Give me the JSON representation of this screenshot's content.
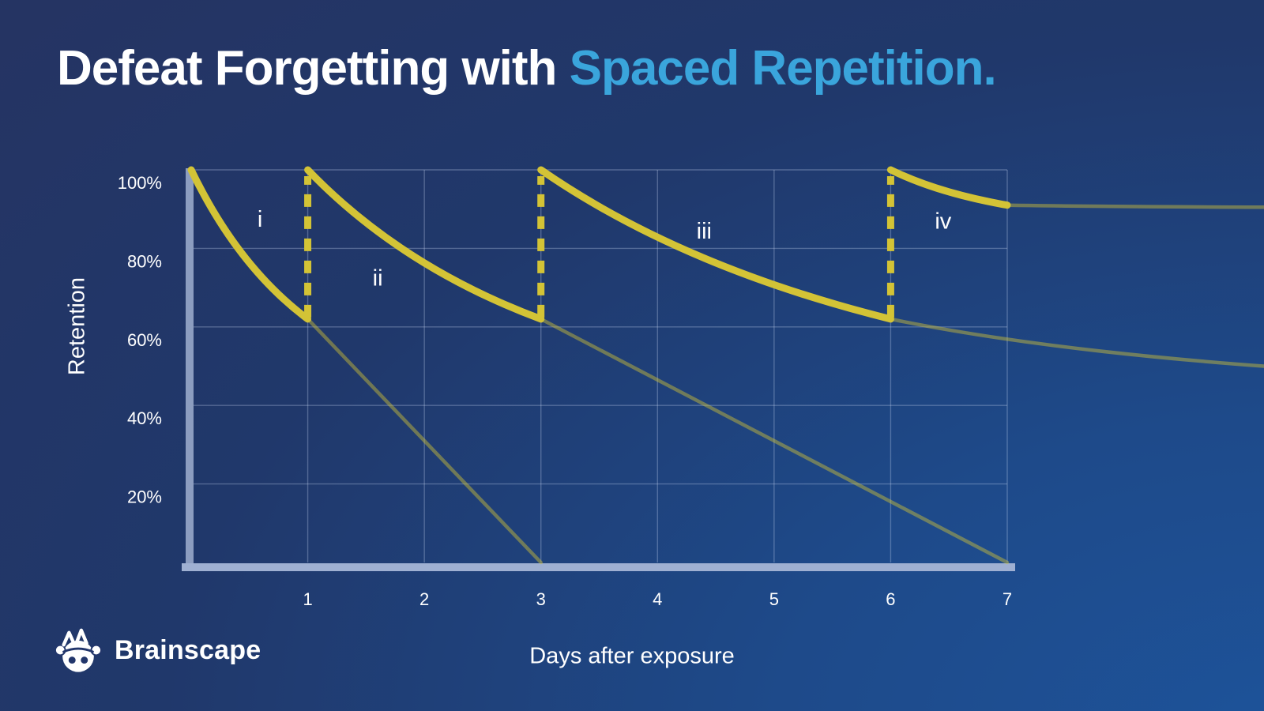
{
  "title": {
    "prefix": "Defeat Forgetting with ",
    "accent": "Spaced Repetition."
  },
  "axis": {
    "y_label": "Retention",
    "x_label": "Days after exposure"
  },
  "brand": {
    "name": "Brainscape"
  },
  "colors": {
    "accent_text": "#3aa5dc",
    "curve_yellow": "#d3c336",
    "faded_curve_opacity": 0.45,
    "grid": "rgba(205,220,245,0.30)",
    "y_axis_bar": "#8c9dc0",
    "x_axis_bar": "#9fb0d2",
    "text": "#ffffff",
    "background_dark": "#253463",
    "background_light": "#1d539a"
  },
  "chart_data": {
    "type": "line",
    "title": "Defeat Forgetting with Spaced Repetition.",
    "xlabel": "Days after exposure",
    "ylabel": "Retention",
    "xlim": [
      0,
      7
    ],
    "ylim": [
      0,
      100
    ],
    "grid": true,
    "x_ticks": [
      1,
      2,
      3,
      4,
      5,
      6,
      7
    ],
    "y_ticks": [
      100,
      80,
      60,
      40,
      20
    ],
    "y_tick_suffix": "%",
    "review_sessions": {
      "days": [
        1,
        3,
        6
      ],
      "retention_at_review_pct": 62,
      "style": "dashed-vertical"
    },
    "series": [
      {
        "name": "i",
        "label": "i",
        "x": [
          0,
          1
        ],
        "y": [
          100,
          62
        ],
        "label_pos": {
          "day": 0.59,
          "pct": 87.5
        }
      },
      {
        "name": "ii",
        "label": "ii",
        "x": [
          1,
          3
        ],
        "y": [
          100,
          62
        ],
        "label_pos": {
          "day": 1.6,
          "pct": 72.5
        }
      },
      {
        "name": "iii",
        "label": "iii",
        "x": [
          3,
          6
        ],
        "y": [
          100,
          62
        ],
        "label_pos": {
          "day": 4.4,
          "pct": 84.5
        }
      },
      {
        "name": "iv",
        "label": "iv",
        "x": [
          6,
          7
        ],
        "y": [
          100,
          91
        ],
        "label_pos": {
          "day": 6.45,
          "pct": 87.0
        }
      }
    ],
    "decay_without_review": [
      {
        "x": [
          1,
          3
        ],
        "y": [
          62,
          0
        ]
      },
      {
        "x": [
          3,
          7
        ],
        "y": [
          62,
          0
        ]
      },
      {
        "x": [
          6,
          9.2
        ],
        "y": [
          62,
          50
        ],
        "bend": [
          0.4,
          0.65
        ]
      },
      {
        "x": [
          7,
          9.2
        ],
        "y": [
          91,
          90.5
        ],
        "bend": [
          0.4,
          0.8
        ]
      }
    ]
  }
}
